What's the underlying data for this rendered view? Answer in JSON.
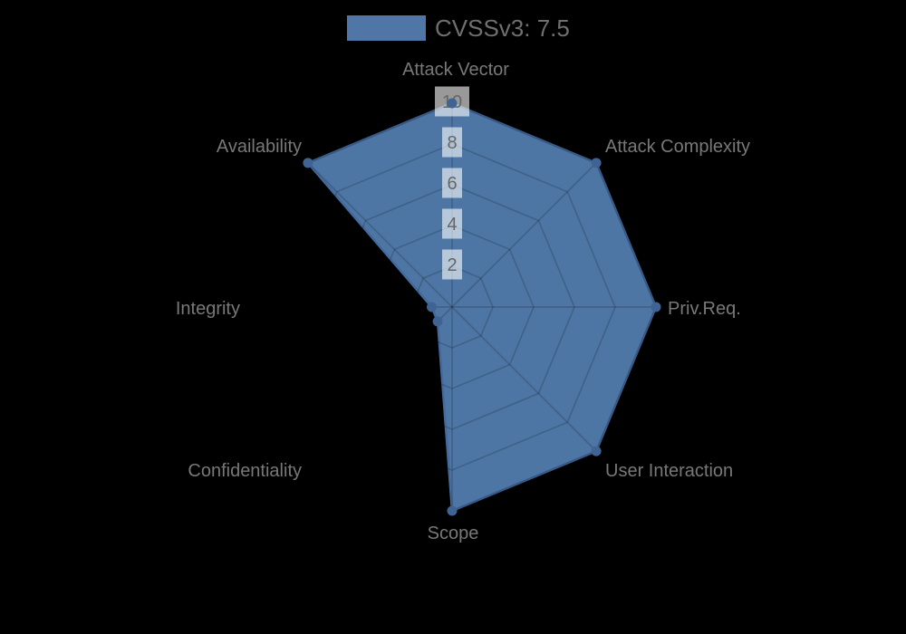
{
  "chart_data": {
    "type": "radar",
    "title": "",
    "legend": {
      "label": "CVSSv3: 7.5",
      "position": "top"
    },
    "categories": [
      "Attack Vector",
      "Attack Complexity",
      "Priv.Req.",
      "User Interaction",
      "Scope",
      "Confidentiality",
      "Integrity",
      "Availability"
    ],
    "series": [
      {
        "name": "CVSSv3: 7.5",
        "values": [
          10,
          10,
          10,
          10,
          10,
          1,
          1,
          10
        ]
      }
    ],
    "scale": {
      "min": 0,
      "max": 10,
      "tick_labels": [
        "2",
        "4",
        "6",
        "8",
        "10"
      ],
      "grid": "polygon-web",
      "grid_visible_inside_fill_only": true
    },
    "colors": {
      "background": "#000000",
      "series_fill": "#4d76a4",
      "series_border": "#44699c",
      "marker": "#3f6493",
      "legend_swatch": "#4f76a6",
      "legend_text": "#6f6f6f",
      "axis_label_text": "#787878",
      "tick_text": "#666666",
      "tick_backdrop": "rgba(255,255,255,0.6)",
      "grid_line": "rgba(0,0,0,0.17)"
    }
  }
}
